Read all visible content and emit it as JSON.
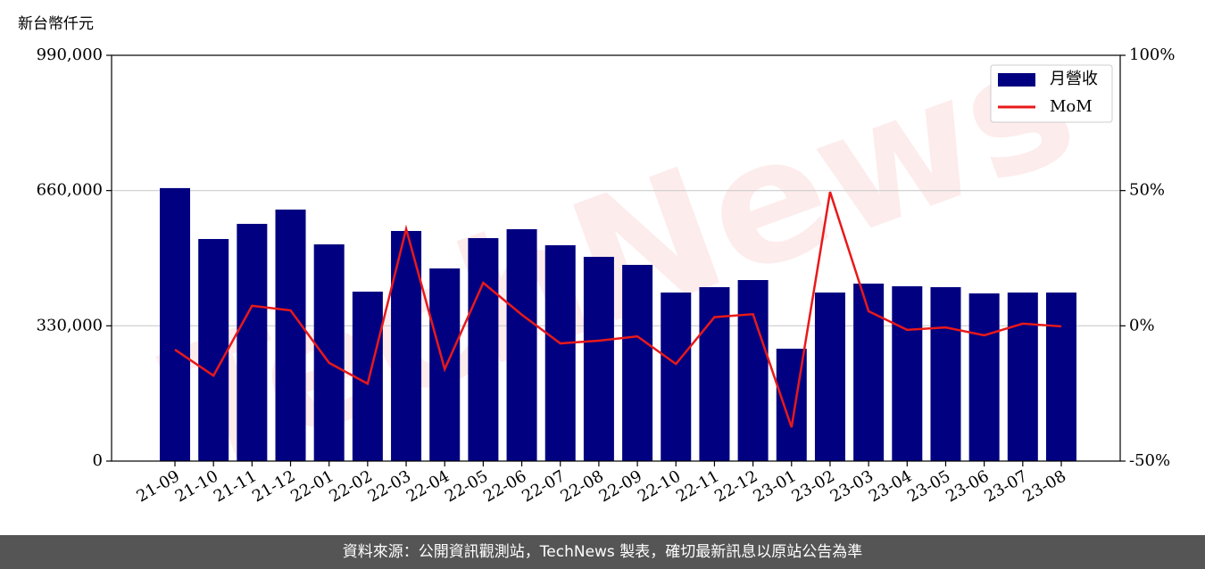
{
  "chart_data": {
    "type": "bar-line",
    "y_label": "新台幣仟元",
    "watermark": "TechNews",
    "categories": [
      "21-09",
      "21-10",
      "21-11",
      "21-12",
      "22-01",
      "22-02",
      "22-03",
      "22-04",
      "22-05",
      "22-06",
      "22-07",
      "22-08",
      "22-09",
      "22-10",
      "22-11",
      "22-12",
      "23-01",
      "23-02",
      "23-03",
      "23-04",
      "23-05",
      "23-06",
      "23-07",
      "23-08"
    ],
    "series": [
      {
        "name": "月營收",
        "type": "bar",
        "color": "#000080",
        "values": [
          666000,
          541800,
          578800,
          613600,
          528700,
          413400,
          561400,
          470000,
          544000,
          565700,
          526600,
          498300,
          478700,
          411200,
          424300,
          441700,
          274200,
          411200,
          433000,
          426500,
          424300,
          409100,
          411200,
          411200
        ]
      },
      {
        "name": "MoM",
        "type": "line",
        "axis": "y2",
        "color": "#e8191a",
        "values": [
          -8.8,
          -18.4,
          7.4,
          5.7,
          -13.7,
          -21.4,
          35.8,
          -16.0,
          15.9,
          4.1,
          -6.5,
          -5.5,
          -3.9,
          -14.1,
          3.2,
          4.3,
          -37.5,
          49.5,
          5.4,
          -1.5,
          -0.6,
          -3.5,
          0.8,
          -0.2
        ]
      }
    ],
    "ylim": [
      0,
      990000
    ],
    "yticks": [
      0,
      {
        "value": 330000,
        "label": "330,000"
      },
      {
        "value": 660000,
        "label": "660,000"
      },
      {
        "value": 990000,
        "label": "990,000"
      }
    ],
    "y2lim": [
      -50,
      100
    ],
    "y2ticks": [
      {
        "value": -50,
        "label": "-50%"
      },
      {
        "value": 0,
        "label": "0%"
      },
      {
        "value": 50,
        "label": "50%"
      },
      {
        "value": 100,
        "label": "100%"
      }
    ],
    "grid": true,
    "legend": "upper right",
    "footer": "資料來源：公開資訊觀測站，TechNews 製表，確切最新訊息以原站公告為準"
  }
}
